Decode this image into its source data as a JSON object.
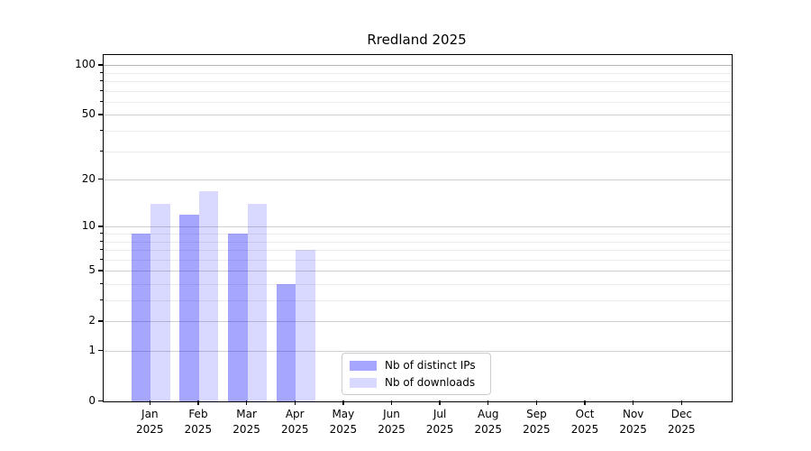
{
  "title": "Rredland 2025",
  "chart_data": {
    "type": "bar",
    "title": "Rredland 2025",
    "categories": [
      "Jan",
      "Feb",
      "Mar",
      "Apr",
      "May",
      "Jun",
      "Jul",
      "Aug",
      "Sep",
      "Oct",
      "Nov",
      "Dec"
    ],
    "year": "2025",
    "series": [
      {
        "name": "Nb of distinct IPs",
        "color": "rgba(0,0,255,0.35)",
        "values": [
          9,
          12,
          9,
          4,
          null,
          null,
          null,
          null,
          null,
          null,
          null,
          null
        ]
      },
      {
        "name": "Nb of downloads",
        "color": "rgba(0,0,255,0.15)",
        "values": [
          14,
          17,
          14,
          7,
          null,
          null,
          null,
          null,
          null,
          null,
          null,
          null
        ]
      }
    ],
    "xlabel": "",
    "ylabel": "",
    "yscale": "log10(1+y)",
    "ylim": [
      0,
      115
    ],
    "yticks": [
      0,
      1,
      2,
      5,
      10,
      20,
      50,
      100
    ],
    "yticks_minor": [
      3,
      4,
      6,
      7,
      8,
      9,
      30,
      40,
      60,
      70,
      80,
      90
    ],
    "grid": true,
    "legend_position": "lower center"
  },
  "colors": {
    "bar_distinct_ips": "rgba(0,0,255,0.35)",
    "bar_downloads": "rgba(0,0,255,0.15)",
    "grid_major": "#d0d0d0",
    "grid_minor": "#ebebeb",
    "grid_top": "#b5b5b5",
    "axis": "#000000",
    "legend_border": "#cccccc",
    "background": "#ffffff"
  }
}
